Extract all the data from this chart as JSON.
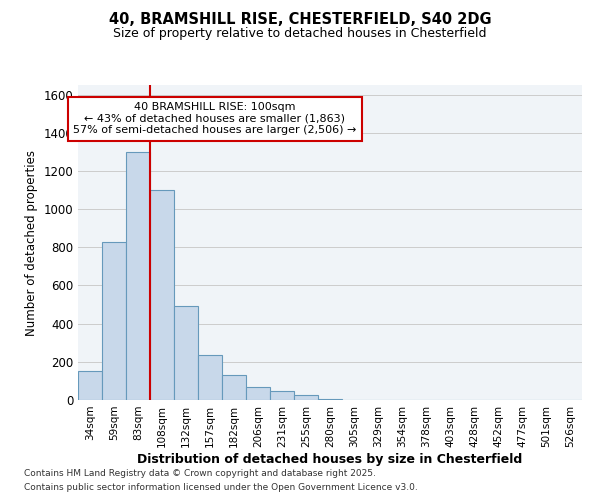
{
  "title1": "40, BRAMSHILL RISE, CHESTERFIELD, S40 2DG",
  "title2": "Size of property relative to detached houses in Chesterfield",
  "xlabel": "Distribution of detached houses by size in Chesterfield",
  "ylabel": "Number of detached properties",
  "categories": [
    "34sqm",
    "59sqm",
    "83sqm",
    "108sqm",
    "132sqm",
    "157sqm",
    "182sqm",
    "206sqm",
    "231sqm",
    "255sqm",
    "280sqm",
    "305sqm",
    "329sqm",
    "354sqm",
    "378sqm",
    "403sqm",
    "428sqm",
    "452sqm",
    "477sqm",
    "501sqm",
    "526sqm"
  ],
  "values": [
    150,
    825,
    1300,
    1100,
    490,
    235,
    130,
    70,
    45,
    25,
    5,
    2,
    0,
    0,
    0,
    0,
    0,
    0,
    0,
    0,
    0
  ],
  "bar_color": "#c8d8ea",
  "bar_edge_color": "#6699bb",
  "vline_color": "#cc0000",
  "vline_pos": 2.5,
  "annotation_line1": "40 BRAMSHILL RISE: 100sqm",
  "annotation_line2": "← 43% of detached houses are smaller (1,863)",
  "annotation_line3": "57% of semi-detached houses are larger (2,506) →",
  "ylim": [
    0,
    1650
  ],
  "yticks": [
    0,
    200,
    400,
    600,
    800,
    1000,
    1200,
    1400,
    1600
  ],
  "footer1": "Contains HM Land Registry data © Crown copyright and database right 2025.",
  "footer2": "Contains public sector information licensed under the Open Government Licence v3.0.",
  "grid_color": "#cccccc",
  "plot_bg_color": "#f0f4f8",
  "fig_bg_color": "#ffffff"
}
